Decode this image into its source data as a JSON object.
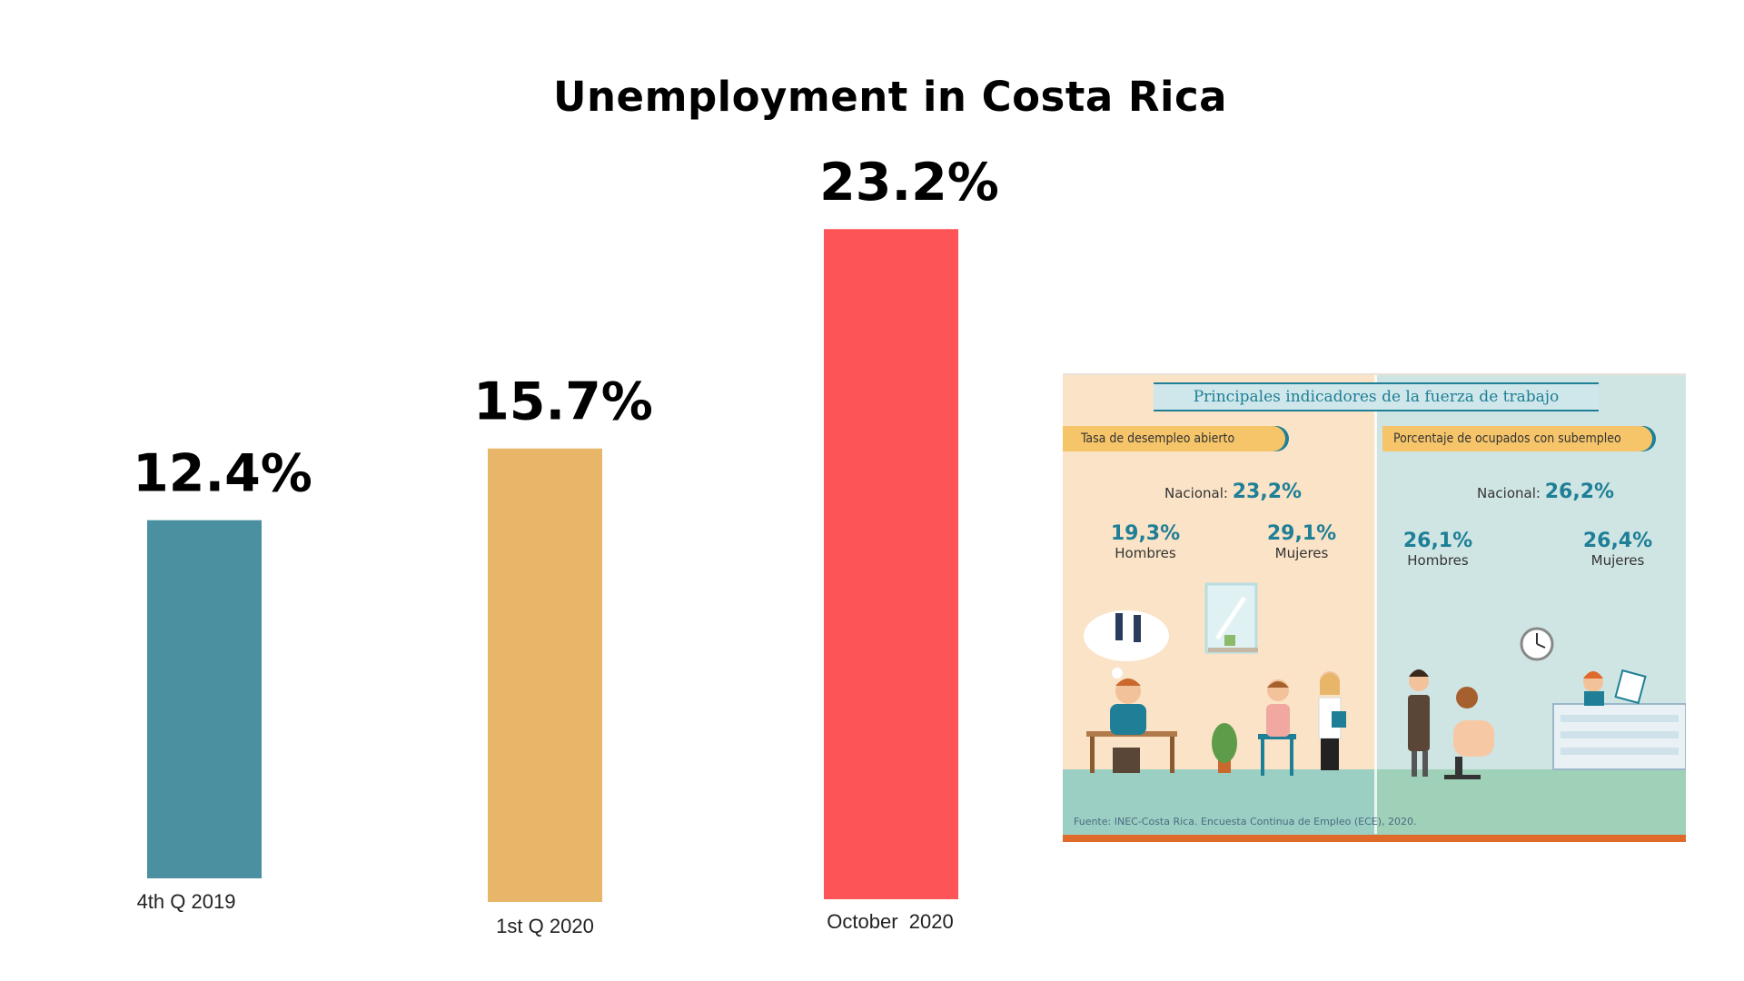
{
  "title": "Unemployment in Costa Rica",
  "chart_data": {
    "type": "bar",
    "title": "Unemployment in Costa Rica",
    "categories": [
      "4th Q 2019",
      "1st Q 2020",
      "October  2020"
    ],
    "values": [
      12.4,
      15.7,
      23.2
    ],
    "value_labels": [
      "12.4%",
      "15.7%",
      "23.2%"
    ],
    "colors": [
      "#4a90a0",
      "#e8b668",
      "#fd5557"
    ],
    "ylim": [
      0,
      25
    ],
    "grid": false,
    "legend": "none"
  },
  "infographic": {
    "banner": "Principales indicadores de la fuerza de trabajo",
    "left": {
      "tag": "Tasa de desempleo abierto",
      "national_label": "Nacional:",
      "national_value": "23,2%",
      "men_value": "19,3%",
      "men_label": "Hombres",
      "women_value": "29,1%",
      "women_label": "Mujeres"
    },
    "right": {
      "tag": "Porcentaje de ocupados con subempleo",
      "national_label": "Nacional:",
      "national_value": "26,2%",
      "men_value": "26,1%",
      "men_label": "Hombres",
      "women_value": "26,4%",
      "women_label": "Mujeres"
    },
    "source": "Fuente: INEC-Costa Rica. Encuesta Continua de Empleo (ECE), 2020."
  }
}
